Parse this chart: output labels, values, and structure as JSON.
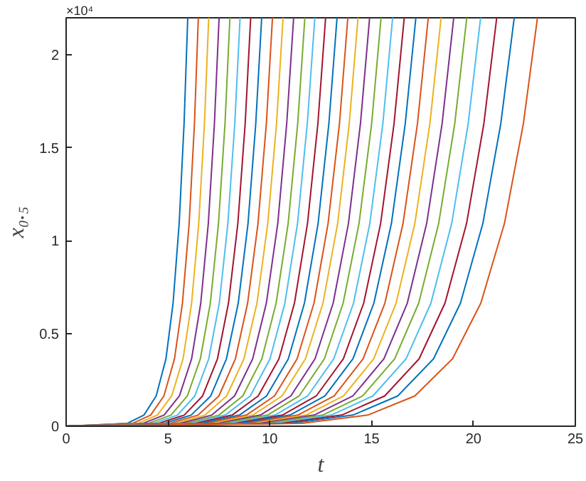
{
  "chart_data": {
    "type": "line",
    "xlabel": "t",
    "ylabel": "x₀.₅",
    "xlim": [
      0,
      25
    ],
    "xticks": [
      0,
      5,
      10,
      15,
      20,
      25
    ],
    "ylim": [
      0,
      2.2
    ],
    "yticks": [
      0,
      0.5,
      1,
      1.5,
      2
    ],
    "annotations": [
      "×10⁴"
    ],
    "grid": false,
    "marker": "none",
    "line_style": "solid",
    "series": [
      {
        "color": "#0072bd",
        "x": [
          0,
          2.99,
          3.82,
          4.42,
          4.9,
          5.25,
          5.55,
          5.79,
          5.97
        ],
        "values": [
          0,
          0.015,
          0.06,
          0.163,
          0.363,
          0.663,
          1.092,
          1.63,
          2.2
        ]
      },
      {
        "color": "#d95319",
        "x": [
          0,
          3.25,
          4.15,
          4.8,
          5.32,
          5.71,
          6.04,
          6.3,
          6.49
        ],
        "values": [
          0,
          0.015,
          0.06,
          0.163,
          0.363,
          0.663,
          1.092,
          1.63,
          2.2
        ]
      },
      {
        "color": "#edb120",
        "x": [
          0,
          3.5,
          4.48,
          5.18,
          5.74,
          6.16,
          6.51,
          6.79,
          7.0
        ],
        "values": [
          0,
          0.015,
          0.06,
          0.163,
          0.363,
          0.663,
          1.092,
          1.63,
          2.2
        ]
      },
      {
        "color": "#7e2f8e",
        "x": [
          0,
          3.76,
          4.81,
          5.56,
          6.16,
          6.61,
          6.98,
          7.28,
          7.51
        ],
        "values": [
          0,
          0.015,
          0.06,
          0.163,
          0.363,
          0.663,
          1.092,
          1.63,
          2.2
        ]
      },
      {
        "color": "#77ac30",
        "x": [
          0,
          4.02,
          5.15,
          5.95,
          6.59,
          7.08,
          7.48,
          7.8,
          8.04
        ],
        "values": [
          0,
          0.015,
          0.06,
          0.163,
          0.363,
          0.663,
          1.092,
          1.63,
          2.2
        ]
      },
      {
        "color": "#4dbeee",
        "x": [
          0,
          4.27,
          5.47,
          6.32,
          7.0,
          7.52,
          7.94,
          8.28,
          8.54
        ],
        "values": [
          0,
          0.015,
          0.06,
          0.163,
          0.363,
          0.663,
          1.092,
          1.63,
          2.2
        ]
      },
      {
        "color": "#a2142f",
        "x": [
          0,
          4.53,
          5.8,
          6.7,
          7.43,
          7.97,
          8.43,
          8.79,
          9.06
        ],
        "values": [
          0,
          0.015,
          0.06,
          0.163,
          0.363,
          0.663,
          1.092,
          1.63,
          2.2
        ]
      },
      {
        "color": "#0072bd",
        "x": [
          0,
          4.8,
          6.14,
          7.1,
          7.87,
          8.45,
          8.93,
          9.31,
          9.6
        ],
        "values": [
          0,
          0.015,
          0.06,
          0.163,
          0.363,
          0.663,
          1.092,
          1.63,
          2.2
        ]
      },
      {
        "color": "#d95319",
        "x": [
          0,
          5.07,
          6.48,
          7.5,
          8.31,
          8.91,
          9.42,
          9.83,
          10.13
        ],
        "values": [
          0,
          0.015,
          0.06,
          0.163,
          0.363,
          0.663,
          1.092,
          1.63,
          2.2
        ]
      },
      {
        "color": "#edb120",
        "x": [
          0,
          5.33,
          6.82,
          7.88,
          8.73,
          9.37,
          9.9,
          10.33,
          10.65
        ],
        "values": [
          0,
          0.015,
          0.06,
          0.163,
          0.363,
          0.663,
          1.092,
          1.63,
          2.2
        ]
      },
      {
        "color": "#7e2f8e",
        "x": [
          0,
          5.59,
          7.15,
          8.27,
          9.16,
          9.83,
          10.39,
          10.83,
          11.17
        ],
        "values": [
          0,
          0.015,
          0.06,
          0.163,
          0.363,
          0.663,
          1.092,
          1.63,
          2.2
        ]
      },
      {
        "color": "#77ac30",
        "x": [
          0,
          5.86,
          7.5,
          8.67,
          9.61,
          10.31,
          10.9,
          11.37,
          11.72
        ],
        "values": [
          0,
          0.015,
          0.06,
          0.163,
          0.363,
          0.663,
          1.092,
          1.63,
          2.2
        ]
      },
      {
        "color": "#4dbeee",
        "x": [
          0,
          6.11,
          7.81,
          9.04,
          10.01,
          10.74,
          11.36,
          11.84,
          12.21
        ],
        "values": [
          0,
          0.015,
          0.06,
          0.163,
          0.363,
          0.663,
          1.092,
          1.63,
          2.2
        ]
      },
      {
        "color": "#a2142f",
        "x": [
          0,
          6.37,
          8.15,
          9.43,
          10.45,
          11.21,
          11.85,
          12.36,
          12.74
        ],
        "values": [
          0,
          0.015,
          0.06,
          0.163,
          0.363,
          0.663,
          1.092,
          1.63,
          2.2
        ]
      },
      {
        "color": "#0072bd",
        "x": [
          0,
          6.65,
          8.51,
          9.84,
          10.91,
          11.7,
          12.37,
          12.9,
          13.3
        ],
        "values": [
          0,
          0.015,
          0.06,
          0.163,
          0.363,
          0.663,
          1.092,
          1.63,
          2.2
        ]
      },
      {
        "color": "#d95319",
        "x": [
          0,
          6.92,
          8.85,
          10.23,
          11.34,
          12.17,
          12.86,
          13.42,
          13.83
        ],
        "values": [
          0,
          0.015,
          0.06,
          0.163,
          0.363,
          0.663,
          1.092,
          1.63,
          2.2
        ]
      },
      {
        "color": "#edb120",
        "x": [
          0,
          7.17,
          9.17,
          10.6,
          11.75,
          12.61,
          13.33,
          13.9,
          14.33
        ],
        "values": [
          0,
          0.015,
          0.06,
          0.163,
          0.363,
          0.663,
          1.092,
          1.63,
          2.2
        ]
      },
      {
        "color": "#7e2f8e",
        "x": [
          0,
          7.45,
          9.54,
          11.03,
          12.22,
          13.11,
          13.86,
          14.45,
          14.9
        ],
        "values": [
          0,
          0.015,
          0.06,
          0.163,
          0.363,
          0.663,
          1.092,
          1.63,
          2.2
        ]
      },
      {
        "color": "#77ac30",
        "x": [
          0,
          7.73,
          9.89,
          11.44,
          12.68,
          13.6,
          14.38,
          15.0,
          15.46
        ],
        "values": [
          0,
          0.015,
          0.06,
          0.163,
          0.363,
          0.663,
          1.092,
          1.63,
          2.2
        ]
      },
      {
        "color": "#4dbeee",
        "x": [
          0,
          8.02,
          10.26,
          11.86,
          13.14,
          14.11,
          14.91,
          15.55,
          16.03
        ],
        "values": [
          0,
          0.015,
          0.06,
          0.163,
          0.363,
          0.663,
          1.092,
          1.63,
          2.2
        ]
      },
      {
        "color": "#a2142f",
        "x": [
          0,
          8.3,
          10.62,
          12.28,
          13.61,
          14.61,
          15.44,
          16.1,
          16.6
        ],
        "values": [
          0,
          0.015,
          0.06,
          0.163,
          0.363,
          0.663,
          1.092,
          1.63,
          2.2
        ]
      },
      {
        "color": "#0072bd",
        "x": [
          0,
          8.59,
          10.99,
          12.71,
          14.08,
          15.11,
          15.97,
          16.65,
          17.17
        ],
        "values": [
          0,
          0.015,
          0.06,
          0.163,
          0.363,
          0.663,
          1.092,
          1.63,
          2.2
        ]
      },
      {
        "color": "#d95319",
        "x": [
          0,
          8.89,
          11.38,
          13.16,
          14.58,
          15.65,
          16.54,
          17.25,
          17.78
        ],
        "values": [
          0,
          0.015,
          0.06,
          0.163,
          0.363,
          0.663,
          1.092,
          1.63,
          2.2
        ]
      },
      {
        "color": "#edb120",
        "x": [
          0,
          9.21,
          11.78,
          13.62,
          15.1,
          16.2,
          17.12,
          17.86,
          18.41
        ],
        "values": [
          0,
          0.015,
          0.06,
          0.163,
          0.363,
          0.663,
          1.092,
          1.63,
          2.2
        ]
      },
      {
        "color": "#7e2f8e",
        "x": [
          0,
          9.52,
          12.18,
          14.08,
          15.6,
          16.75,
          17.7,
          18.46,
          19.03
        ],
        "values": [
          0,
          0.015,
          0.06,
          0.163,
          0.363,
          0.663,
          1.092,
          1.63,
          2.2
        ]
      },
      {
        "color": "#77ac30",
        "x": [
          0,
          9.84,
          12.59,
          14.56,
          16.13,
          17.31,
          18.29,
          19.08,
          19.67
        ],
        "values": [
          0,
          0.015,
          0.06,
          0.163,
          0.363,
          0.663,
          1.092,
          1.63,
          2.2
        ]
      },
      {
        "color": "#4dbeee",
        "x": [
          0,
          10.18,
          13.02,
          15.06,
          16.69,
          17.91,
          18.93,
          19.74,
          20.35
        ],
        "values": [
          0,
          0.015,
          0.06,
          0.163,
          0.363,
          0.663,
          1.092,
          1.63,
          2.2
        ]
      },
      {
        "color": "#a2142f",
        "x": [
          0,
          10.57,
          13.53,
          15.64,
          17.33,
          18.6,
          19.66,
          20.51,
          21.14
        ],
        "values": [
          0,
          0.015,
          0.06,
          0.163,
          0.363,
          0.663,
          1.092,
          1.63,
          2.2
        ]
      },
      {
        "color": "#0072bd",
        "x": [
          0,
          11.0,
          14.08,
          16.28,
          18.04,
          19.36,
          20.46,
          21.34,
          22.0
        ],
        "values": [
          0,
          0.015,
          0.06,
          0.163,
          0.363,
          0.663,
          1.092,
          1.63,
          2.2
        ]
      },
      {
        "color": "#d95319",
        "x": [
          0,
          11.57,
          14.81,
          17.12,
          18.97,
          20.36,
          21.52,
          22.45,
          23.14
        ],
        "values": [
          0,
          0.015,
          0.06,
          0.163,
          0.363,
          0.663,
          1.092,
          1.63,
          2.2
        ]
      }
    ]
  }
}
